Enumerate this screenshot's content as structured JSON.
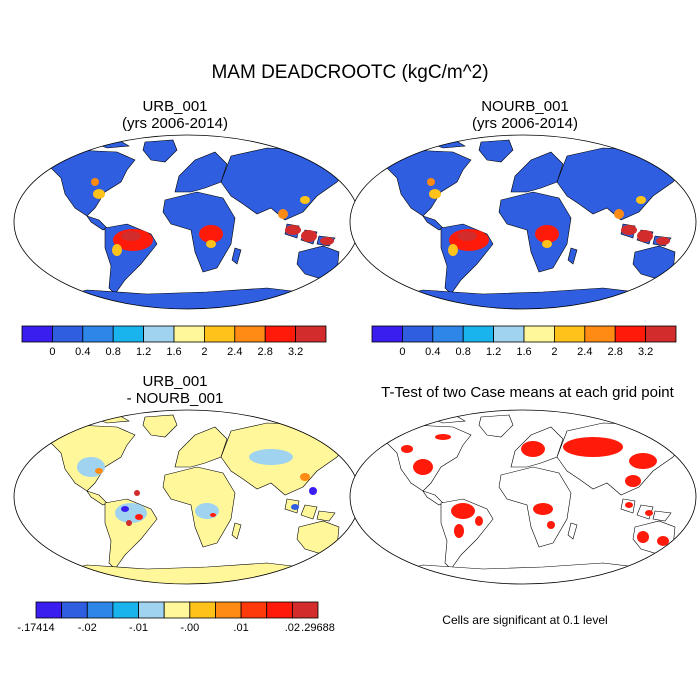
{
  "main_title": "MAM DEADCROOTC (kgC/m^2)",
  "panels": [
    {
      "title_line1": "URB_001",
      "title_line2": "(yrs 2006-2014)"
    },
    {
      "title_line1": "NOURB_001",
      "title_line2": "(yrs 2006-2014)"
    },
    {
      "title_line1": "URB_001",
      "title_line2": "- NOURB_001"
    },
    {
      "title_line1": "T-Test of two Case means at each grid point",
      "title_line2": ""
    }
  ],
  "colorbar_abs": {
    "colors": [
      "#3a1ef0",
      "#2f5ee0",
      "#2d86e8",
      "#19b4ee",
      "#9fd3ef",
      "#fff799",
      "#ffc21a",
      "#ff8a14",
      "#ff1a0a",
      "#d22c2c"
    ],
    "tick_labels": [
      "0",
      "0.4",
      "0.8",
      "1.2",
      "1.6",
      "2",
      "2.4",
      "2.8",
      "3.2"
    ]
  },
  "colorbar_diff": {
    "colors": [
      "#3a1ef0",
      "#2f5ee0",
      "#2d86e8",
      "#19b4ee",
      "#9fd3ef",
      "#fff799",
      "#ffc21a",
      "#ff8a14",
      "#ff3a0a",
      "#ff1a0a",
      "#d22c2c"
    ],
    "tick_labels": [
      "-.17414",
      "-.02",
      "-.01",
      "-.00",
      ".01",
      ".02",
      ".29688"
    ]
  },
  "significance_note": "Cells are significant at 0.1 level",
  "colors": {
    "ocean": "#ffffff",
    "land_abs": "#2f5ee0",
    "land_diff": "#fff799",
    "signif": "#ff1a0a"
  }
}
